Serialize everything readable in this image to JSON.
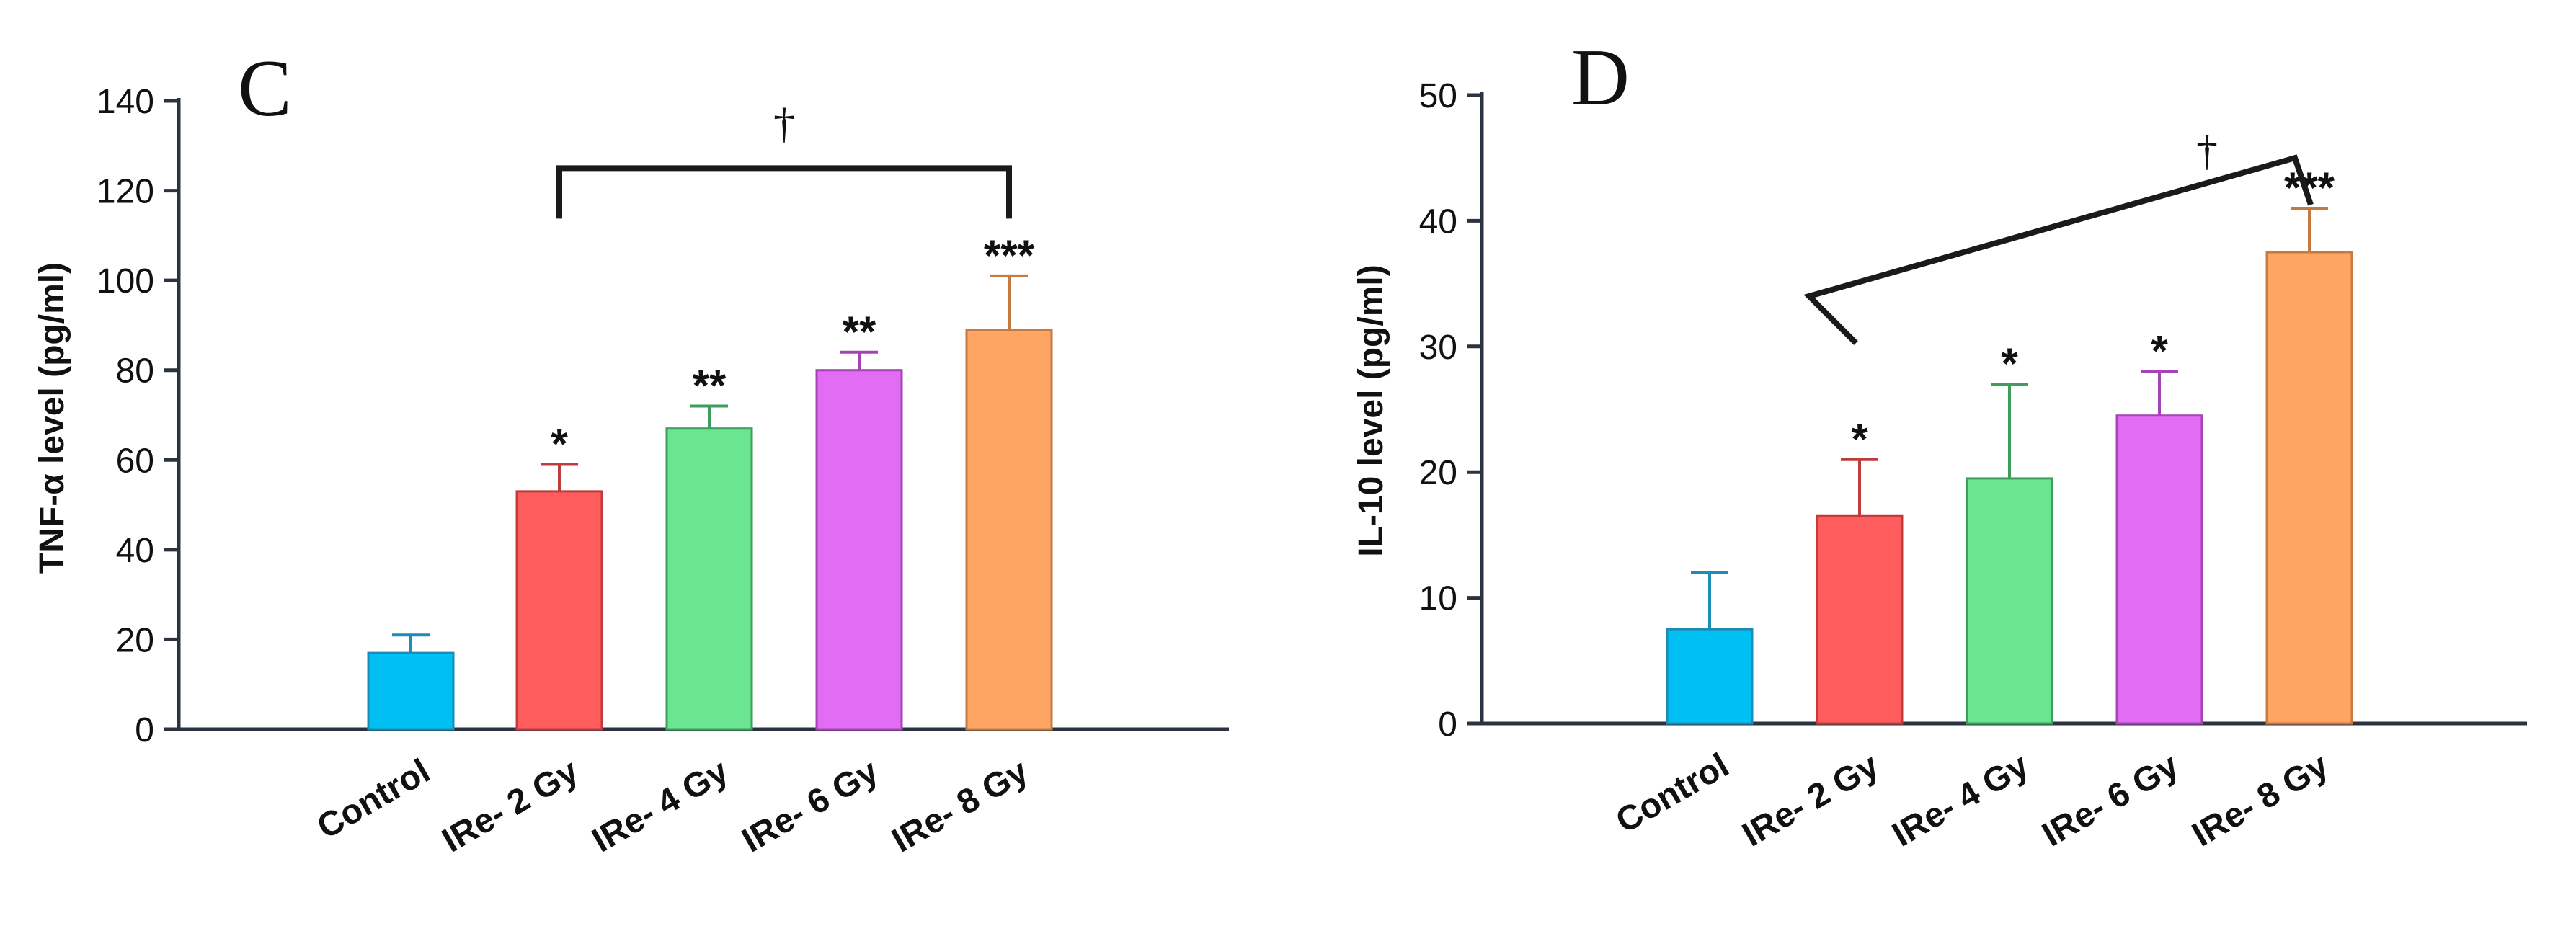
{
  "chart_data": [
    {
      "type": "bar",
      "panel": "C",
      "ylabel": "TNF-α level (pg/ml)",
      "ylim": [
        0,
        140
      ],
      "yticks": [
        0,
        20,
        40,
        60,
        80,
        100,
        120,
        140
      ],
      "categories": [
        "Control",
        "IRe- 2 Gy",
        "IRe- 4 Gy",
        "IRe- 6 Gy",
        "IRe- 8 Gy"
      ],
      "values": [
        17,
        53,
        67,
        80,
        89
      ],
      "errors": [
        4,
        6,
        5,
        4,
        12
      ],
      "significance": [
        "",
        "*",
        "**",
        "**",
        "***"
      ],
      "colors": [
        "#00BFF3",
        "#FF5D5D",
        "#6BE58F",
        "#E26CF3",
        "#FFA564"
      ],
      "edge_colors": [
        "#1C8BB5",
        "#C03C3C",
        "#3E9E5E",
        "#A445B4",
        "#C67A40"
      ],
      "bracket": {
        "from": 1,
        "to": 4,
        "level": 125,
        "label": "†",
        "shape": "flat"
      }
    },
    {
      "type": "bar",
      "panel": "D",
      "ylabel": "IL-10 level (pg/ml)",
      "ylim": [
        0,
        50
      ],
      "yticks": [
        0,
        10,
        20,
        30,
        40,
        50
      ],
      "categories": [
        "Control",
        "IRe- 2 Gy",
        "IRe- 4 Gy",
        "IRe- 6 Gy",
        "IRe- 8 Gy"
      ],
      "values": [
        7.5,
        16.5,
        19.5,
        24.5,
        37.5
      ],
      "errors": [
        4.5,
        4.5,
        7.5,
        3.5,
        3.5
      ],
      "significance": [
        "",
        "*",
        "*",
        "*",
        "***"
      ],
      "colors": [
        "#00BFF3",
        "#FF5D5D",
        "#6BE58F",
        "#E26CF3",
        "#FFA564"
      ],
      "edge_colors": [
        "#1C8BB5",
        "#C03C3C",
        "#3E9E5E",
        "#A445B4",
        "#C67A40"
      ],
      "bracket": {
        "from": 1,
        "to": 4,
        "start_level": 34,
        "end_level": 45,
        "label": "†",
        "shape": "slanted"
      }
    }
  ]
}
